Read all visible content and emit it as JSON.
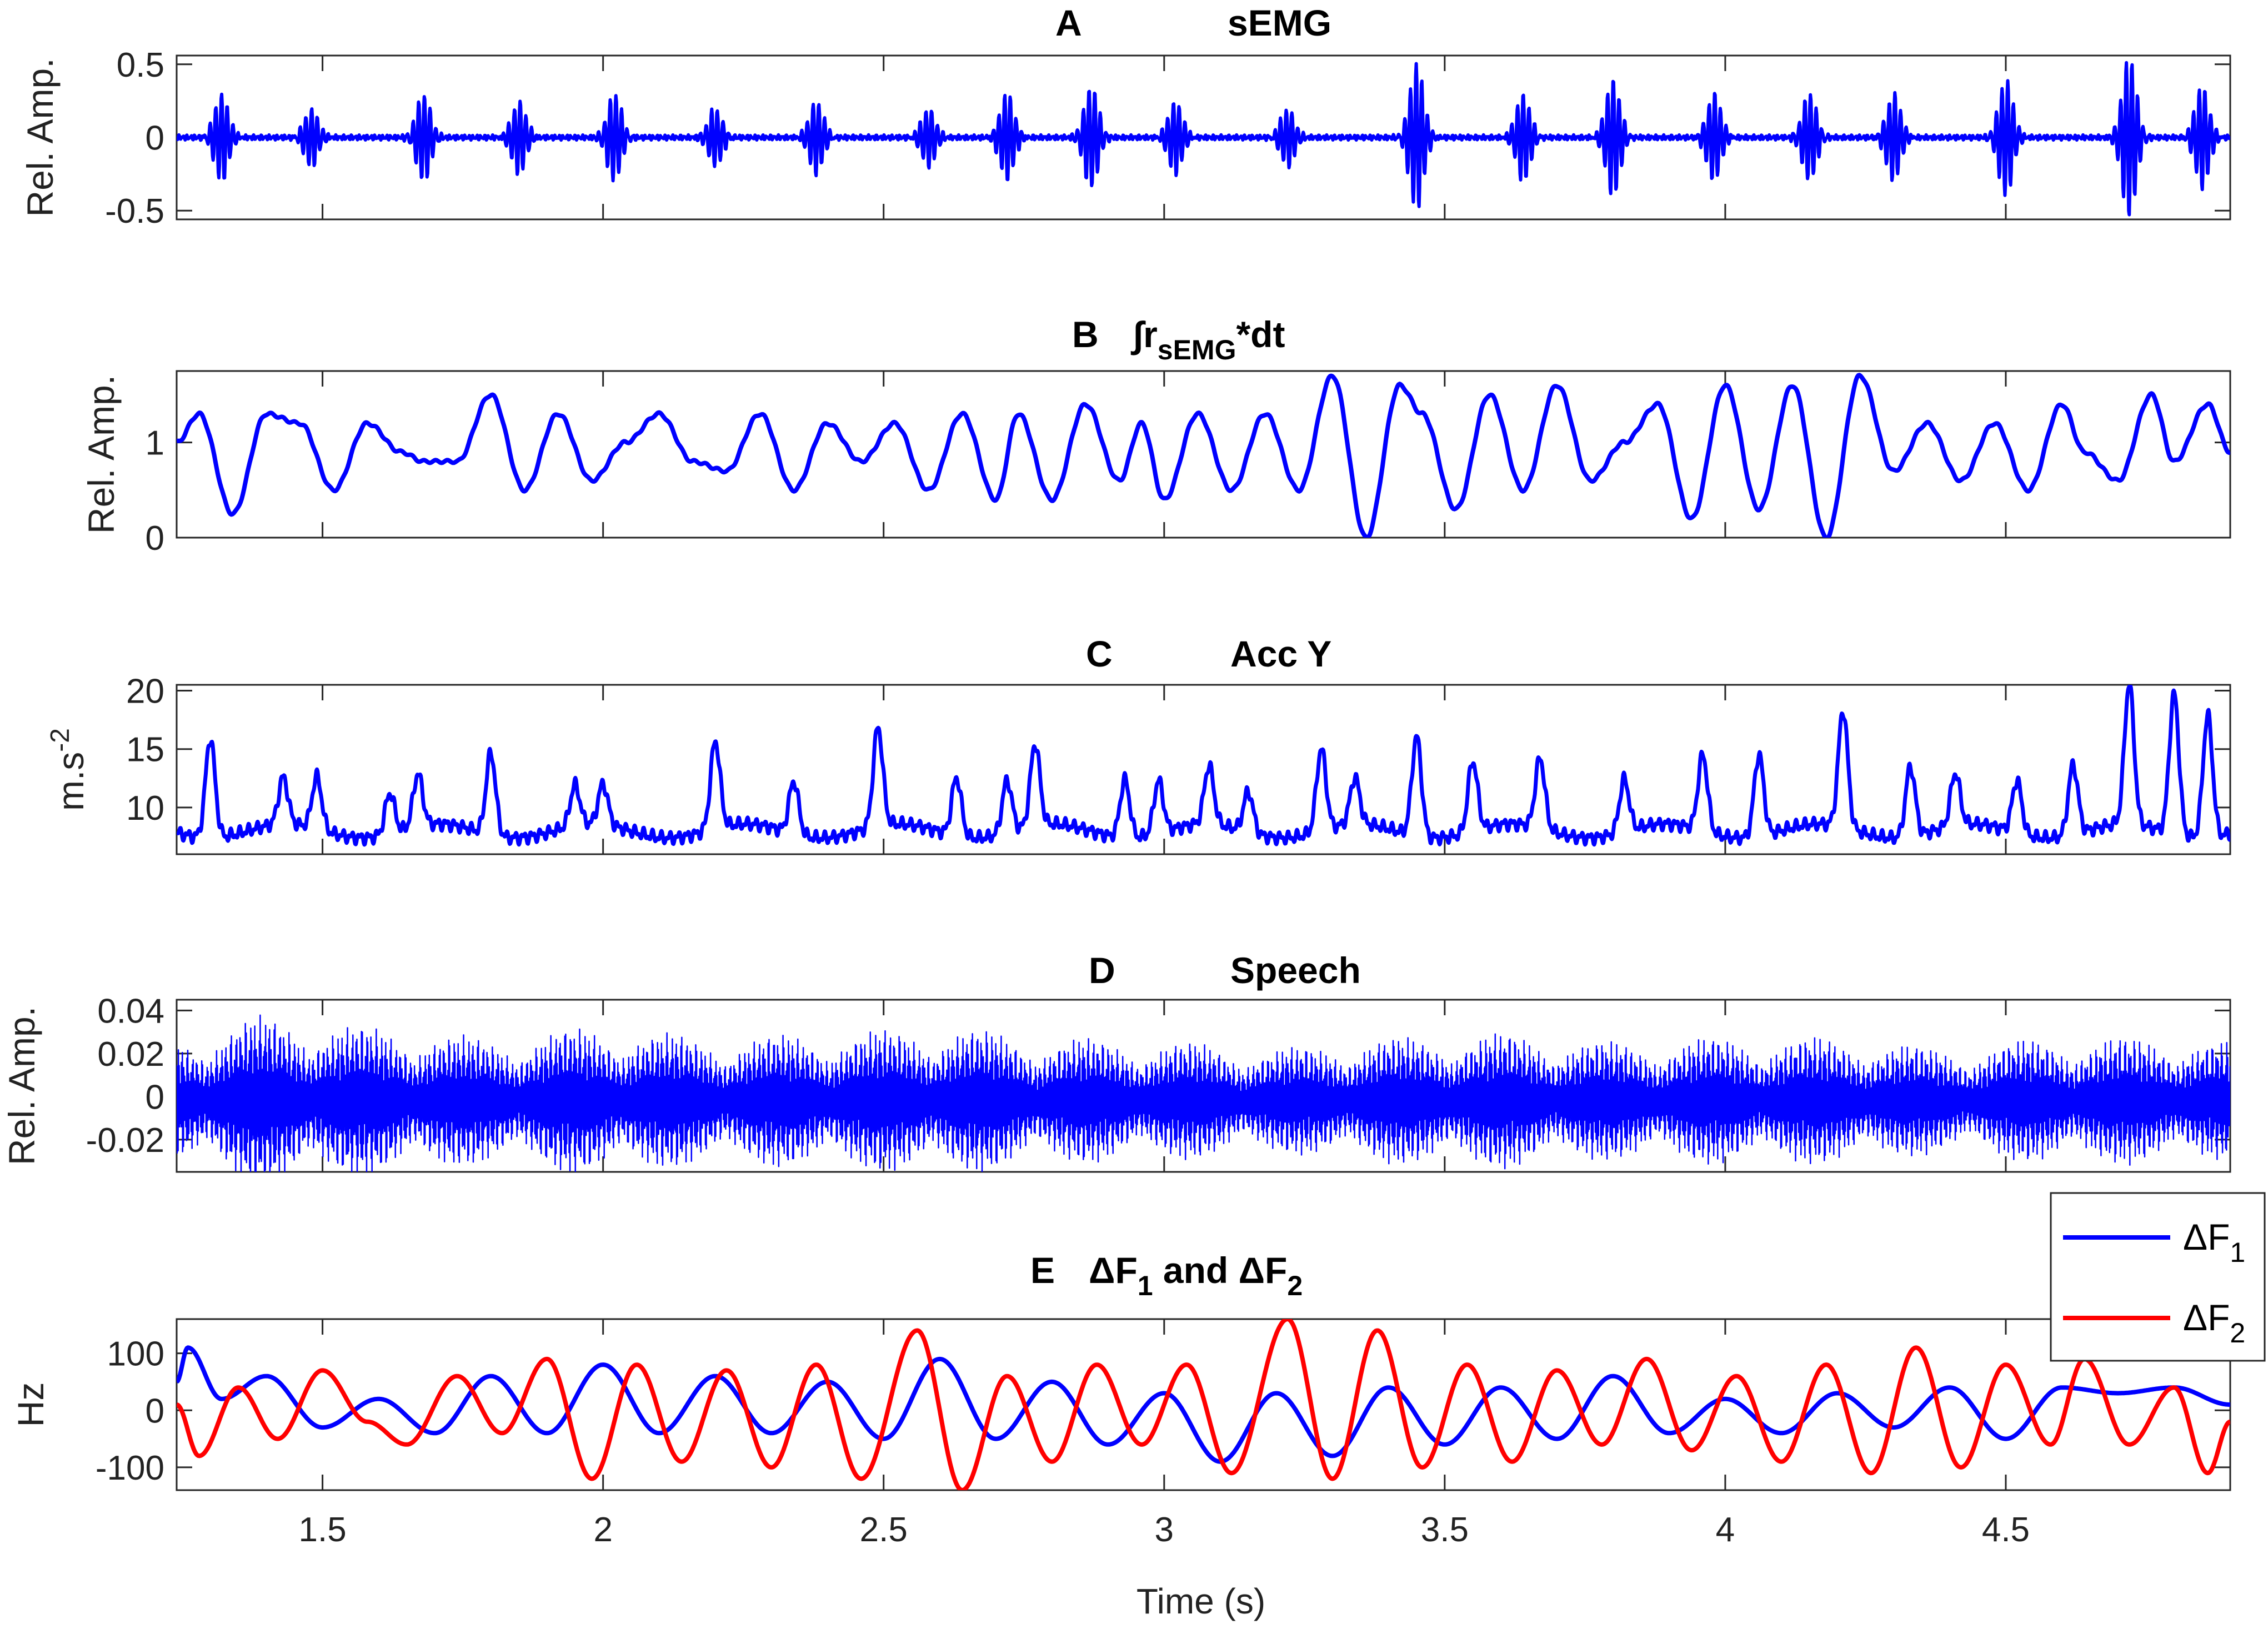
{
  "figure": {
    "xlabel": "Time (s)",
    "xlim": [
      1.24,
      4.9
    ],
    "xticks": [
      "1.5",
      "2",
      "2.5",
      "3",
      "3.5",
      "4",
      "4.5"
    ],
    "xtick_values": [
      1.5,
      2,
      2.5,
      3,
      3.5,
      4,
      4.5
    ]
  },
  "chart_data": [
    {
      "type": "line",
      "panel": "A",
      "title": "sEMG",
      "ylabel": "Rel. Amp.",
      "ylim": [
        -0.56,
        0.56
      ],
      "yticks": [
        "-0.5",
        "0",
        "0.5"
      ],
      "ytick_values": [
        -0.5,
        0,
        0.5
      ],
      "series_color": "#0000ff",
      "burst_times": [
        1.32,
        1.48,
        1.68,
        1.85,
        2.02,
        2.2,
        2.38,
        2.58,
        2.72,
        2.87,
        3.02,
        3.22,
        3.45,
        3.64,
        3.8,
        3.98,
        4.15,
        4.3,
        4.5,
        4.72,
        4.85
      ],
      "burst_peaks": [
        0.3,
        0.2,
        0.3,
        0.25,
        0.3,
        0.2,
        0.25,
        0.2,
        0.3,
        0.35,
        0.25,
        0.2,
        0.5,
        0.3,
        0.4,
        0.3,
        0.3,
        0.3,
        0.4,
        0.55,
        0.35
      ]
    },
    {
      "type": "line",
      "panel": "B",
      "title": "∫r",
      "title_sub": "sEMG",
      "title_suffix": "*dt",
      "ylabel": "Rel. Amp.",
      "ylim": [
        0,
        1.75
      ],
      "yticks": [
        "0",
        "1"
      ],
      "ytick_values": [
        0,
        1
      ],
      "series_color": "#0000ff",
      "x": [
        1.24,
        1.28,
        1.34,
        1.4,
        1.46,
        1.52,
        1.58,
        1.64,
        1.68,
        1.74,
        1.8,
        1.86,
        1.92,
        1.98,
        2.04,
        2.1,
        2.16,
        2.22,
        2.28,
        2.34,
        2.4,
        2.46,
        2.52,
        2.58,
        2.64,
        2.7,
        2.74,
        2.8,
        2.86,
        2.92,
        2.96,
        3.0,
        3.06,
        3.12,
        3.18,
        3.24,
        3.3,
        3.36,
        3.42,
        3.46,
        3.52,
        3.58,
        3.64,
        3.7,
        3.76,
        3.82,
        3.88,
        3.94,
        4.0,
        4.06,
        4.12,
        4.18,
        4.24,
        4.3,
        4.36,
        4.42,
        4.48,
        4.54,
        4.6,
        4.64,
        4.7,
        4.76,
        4.8,
        4.86,
        4.9
      ],
      "values": [
        1.0,
        1.3,
        0.25,
        1.3,
        1.2,
        0.5,
        1.2,
        0.9,
        0.8,
        0.8,
        1.5,
        0.5,
        1.3,
        0.6,
        1.0,
        1.3,
        0.8,
        0.7,
        1.3,
        0.5,
        1.2,
        0.8,
        1.2,
        0.5,
        1.3,
        0.4,
        1.3,
        0.4,
        1.4,
        0.6,
        1.2,
        0.4,
        1.3,
        0.5,
        1.3,
        0.5,
        1.7,
        0.0,
        1.6,
        1.3,
        0.3,
        1.5,
        0.5,
        1.6,
        0.6,
        1.0,
        1.4,
        0.2,
        1.6,
        0.3,
        1.6,
        0.0,
        1.7,
        0.7,
        1.2,
        0.6,
        1.2,
        0.5,
        1.4,
        0.9,
        0.6,
        1.5,
        0.8,
        1.4,
        0.9
      ]
    },
    {
      "type": "line",
      "panel": "C",
      "title": "Acc Y",
      "ylabel": "m.s",
      "ylabel_sup": "-2",
      "ylim": [
        6,
        20.5
      ],
      "yticks": [
        "10",
        "15",
        "20"
      ],
      "ytick_values": [
        10,
        15,
        20
      ],
      "series_color": "#0000ff",
      "baseline": 8,
      "peak_times": [
        1.3,
        1.43,
        1.49,
        1.62,
        1.67,
        1.8,
        1.95,
        2.0,
        2.2,
        2.34,
        2.49,
        2.63,
        2.72,
        2.77,
        2.93,
        2.99,
        3.08,
        3.15,
        3.28,
        3.34,
        3.45,
        3.55,
        3.67,
        3.82,
        3.96,
        4.06,
        4.21,
        4.33,
        4.41,
        4.52,
        4.62,
        4.72,
        4.8,
        4.86
      ],
      "peak_values": [
        16.5,
        12,
        12.5,
        11.5,
        12.5,
        15,
        11.5,
        11.5,
        15.5,
        12.5,
        16.5,
        13,
        12.5,
        15,
        13,
        12.5,
        13,
        11.5,
        15,
        12,
        16.5,
        14,
        14,
        12.5,
        14.5,
        15,
        18,
        14,
        12.5,
        12.5,
        14,
        20,
        20,
        18.5
      ]
    },
    {
      "type": "line",
      "panel": "D",
      "title": "Speech",
      "ylabel": "Rel. Amp.",
      "ylim": [
        -0.035,
        0.045
      ],
      "yticks": [
        "-0.02",
        "0",
        "0.02",
        "0.04"
      ],
      "ytick_values": [
        -0.02,
        0,
        0.02,
        0.04
      ],
      "series_color": "#0000ff",
      "envelope_times": [
        1.24,
        1.4,
        1.6,
        1.8,
        2.0,
        2.2,
        2.4,
        2.6,
        2.8,
        3.0,
        3.2,
        3.4,
        3.6,
        3.8,
        4.0,
        4.2,
        4.4,
        4.6,
        4.8,
        4.9
      ],
      "envelope_values": [
        0.03,
        0.04,
        0.035,
        0.03,
        0.035,
        0.03,
        0.032,
        0.035,
        0.03,
        0.028,
        0.025,
        0.03,
        0.032,
        0.028,
        0.03,
        0.03,
        0.025,
        0.03,
        0.03,
        0.028
      ]
    },
    {
      "type": "line",
      "panel": "E",
      "title": "ΔF",
      "title_sub1": "1",
      "title_mid": " and ΔF",
      "title_sub2": "2",
      "ylabel": "Hz",
      "ylim": [
        -140,
        160
      ],
      "yticks": [
        "-100",
        "0",
        "100"
      ],
      "ytick_values": [
        -100,
        0,
        100
      ],
      "legend_position": "top-right",
      "series": [
        {
          "name": "ΔF",
          "name_sub": "1",
          "color": "#0000ff",
          "x": [
            1.24,
            1.26,
            1.32,
            1.4,
            1.5,
            1.6,
            1.7,
            1.8,
            1.9,
            2.0,
            2.1,
            2.2,
            2.3,
            2.4,
            2.5,
            2.6,
            2.7,
            2.8,
            2.9,
            3.0,
            3.1,
            3.2,
            3.3,
            3.4,
            3.5,
            3.6,
            3.7,
            3.8,
            3.9,
            4.0,
            4.1,
            4.2,
            4.3,
            4.4,
            4.5,
            4.6,
            4.7,
            4.8,
            4.9
          ],
          "values": [
            50,
            110,
            20,
            60,
            -30,
            20,
            -40,
            60,
            -40,
            80,
            -40,
            60,
            -40,
            50,
            -50,
            90,
            -50,
            50,
            -60,
            30,
            -90,
            30,
            -80,
            40,
            -60,
            40,
            -50,
            60,
            -40,
            20,
            -40,
            30,
            -30,
            40,
            -50,
            40,
            30,
            40,
            10
          ]
        },
        {
          "name": "ΔF",
          "name_sub": "2",
          "color": "#ff0000",
          "x": [
            1.24,
            1.28,
            1.35,
            1.42,
            1.5,
            1.58,
            1.65,
            1.74,
            1.82,
            1.9,
            1.98,
            2.06,
            2.14,
            2.22,
            2.3,
            2.38,
            2.46,
            2.56,
            2.64,
            2.72,
            2.8,
            2.88,
            2.96,
            3.04,
            3.12,
            3.22,
            3.3,
            3.38,
            3.46,
            3.54,
            3.62,
            3.7,
            3.78,
            3.86,
            3.94,
            4.02,
            4.1,
            4.18,
            4.26,
            4.34,
            4.42,
            4.5,
            4.58,
            4.64,
            4.72,
            4.8,
            4.86,
            4.9
          ],
          "values": [
            10,
            -80,
            40,
            -50,
            70,
            -20,
            -60,
            60,
            -40,
            90,
            -120,
            80,
            -90,
            70,
            -100,
            80,
            -120,
            140,
            -140,
            60,
            -90,
            80,
            -60,
            80,
            -110,
            160,
            -120,
            140,
            -100,
            80,
            -90,
            70,
            -60,
            90,
            -70,
            60,
            -90,
            80,
            -110,
            110,
            -100,
            80,
            -60,
            90,
            -60,
            40,
            -110,
            -20
          ]
        }
      ]
    }
  ]
}
